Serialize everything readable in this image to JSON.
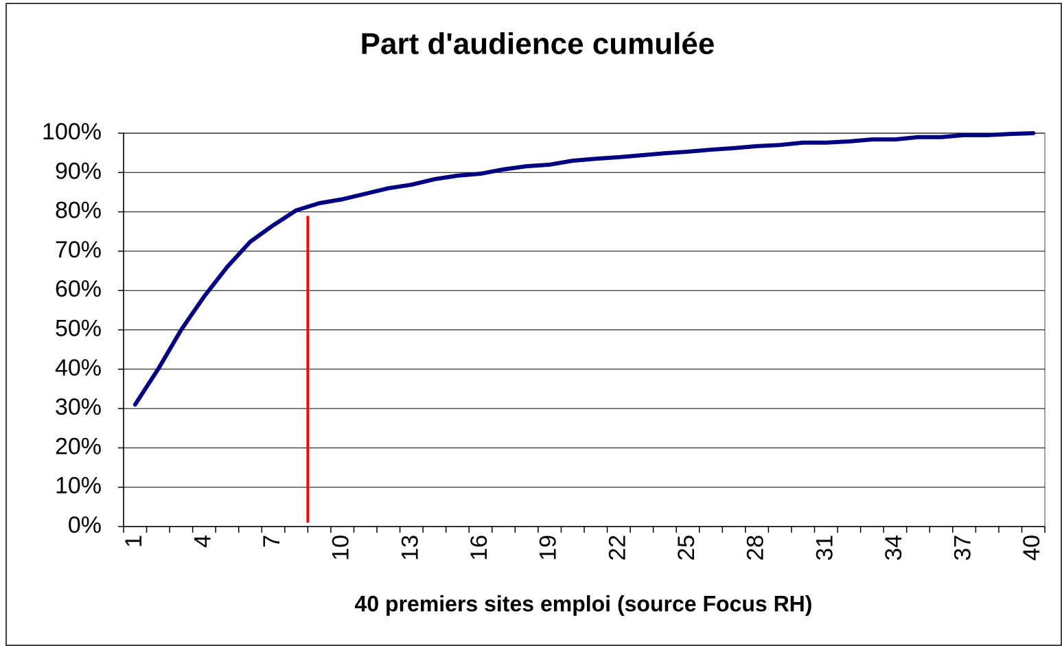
{
  "chart_data": {
    "type": "line",
    "title": "Part d'audience cumulée",
    "x_label": "40 premiers sites emploi (source Focus RH)",
    "categories": [
      "1",
      null,
      null,
      "4",
      null,
      null,
      "7",
      null,
      null,
      "10",
      null,
      null,
      "13",
      null,
      null,
      "16",
      null,
      null,
      "19",
      null,
      null,
      "22",
      null,
      null,
      "25",
      null,
      null,
      "28",
      null,
      null,
      "31",
      null,
      null,
      "34",
      null,
      null,
      "37",
      null,
      null,
      "40"
    ],
    "series": [
      {
        "name": "Part d'audience cumulée",
        "color": "#000080",
        "values": [
          31,
          40,
          50,
          58.5,
          66,
          72.4,
          76.6,
          80.4,
          82.2,
          83.2,
          84.6,
          86,
          86.9,
          88.3,
          89.2,
          89.7,
          90.8,
          91.6,
          92,
          93,
          93.5,
          93.9,
          94.4,
          94.9,
          95.3,
          95.8,
          96.2,
          96.7,
          97,
          97.6,
          97.6,
          97.9,
          98.4,
          98.4,
          99,
          99,
          99.5,
          99.5,
          99.8,
          100
        ]
      }
    ],
    "marker": {
      "x": 8.5,
      "y": [
        1,
        79
      ],
      "color": "#ff0000"
    },
    "ylim": [
      0,
      100
    ],
    "yticks": [
      {
        "value": 0,
        "label": "0%"
      },
      {
        "value": 10,
        "label": "10%"
      },
      {
        "value": 20,
        "label": "20%"
      },
      {
        "value": 30,
        "label": "30%"
      },
      {
        "value": 40,
        "label": "40%"
      },
      {
        "value": 50,
        "label": "50%"
      },
      {
        "value": 60,
        "label": "60%"
      },
      {
        "value": 70,
        "label": "70%"
      },
      {
        "value": 80,
        "label": "80%"
      },
      {
        "value": 90,
        "label": "90%"
      },
      {
        "value": 100,
        "label": "100%"
      }
    ],
    "grid": true
  }
}
